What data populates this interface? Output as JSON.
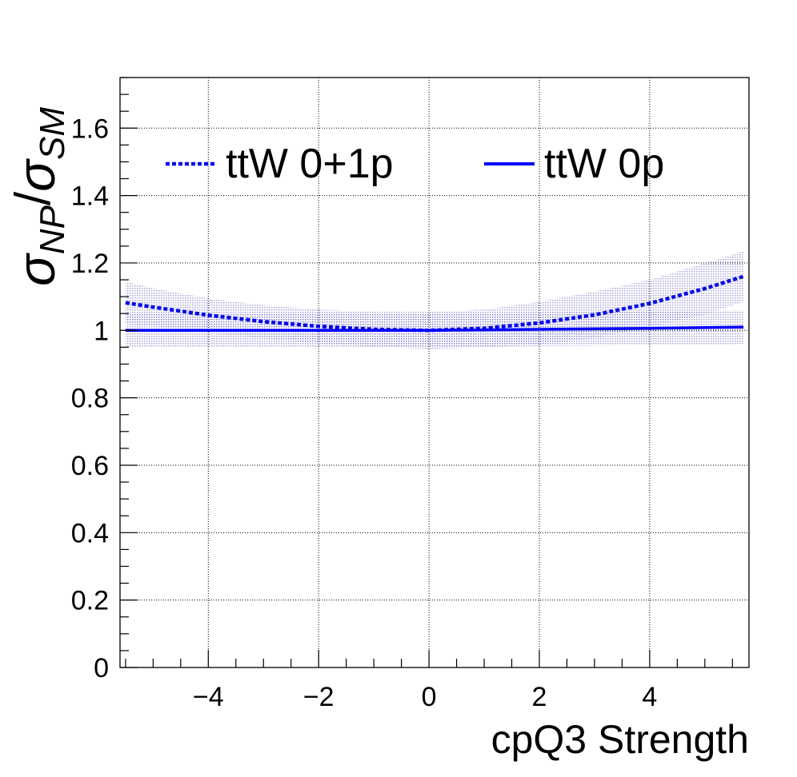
{
  "chart_data": {
    "type": "line",
    "xlabel": "cpQ3 Strength",
    "ylabel": {
      "num_symbol": "σ",
      "num_sub": "NP",
      "slash": "/",
      "den_symbol": "σ",
      "den_sub": "SM"
    },
    "xlim": [
      -5.6,
      5.8
    ],
    "ylim": [
      0,
      1.75
    ],
    "x_ticks": [
      -4,
      -2,
      0,
      2,
      4
    ],
    "x_tick_labels": [
      "−4",
      "−2",
      "0",
      "2",
      "4"
    ],
    "y_ticks": [
      0,
      0.2,
      0.4,
      0.6,
      0.8,
      1,
      1.2,
      1.4,
      1.6
    ],
    "y_tick_labels": [
      "0",
      "0.2",
      "0.4",
      "0.6",
      "0.8",
      "1",
      "1.2",
      "1.4",
      "1.6"
    ],
    "grid": true,
    "legend_position": "top",
    "series": [
      {
        "name": "ttW 0+1p",
        "style": "dotted",
        "color": "#0000ff",
        "x": [
          -5.5,
          -5,
          -4,
          -3,
          -2,
          -1,
          0,
          1,
          2,
          3,
          4,
          5,
          5.7
        ],
        "y": [
          1.082,
          1.069,
          1.045,
          1.026,
          1.012,
          1.003,
          1.0,
          1.006,
          1.022,
          1.046,
          1.08,
          1.124,
          1.16
        ],
        "band_upper": [
          1.145,
          1.125,
          1.095,
          1.075,
          1.062,
          1.055,
          1.055,
          1.062,
          1.085,
          1.115,
          1.15,
          1.2,
          1.235
        ],
        "band_lower": [
          1.02,
          1.013,
          0.995,
          0.977,
          0.962,
          0.951,
          0.945,
          0.95,
          0.959,
          0.977,
          1.01,
          1.048,
          1.085
        ]
      },
      {
        "name": "ttW 0p",
        "style": "solid",
        "color": "#0000ff",
        "x": [
          -5.5,
          -4,
          -2,
          0,
          2,
          4,
          5.7
        ],
        "y": [
          1.0,
          1.0,
          1.0,
          1.0,
          1.003,
          1.006,
          1.01
        ],
        "band_upper": [
          1.05,
          1.05,
          1.05,
          1.05,
          1.053,
          1.056,
          1.06
        ],
        "band_lower": [
          0.95,
          0.95,
          0.95,
          0.95,
          0.953,
          0.956,
          0.96
        ]
      }
    ]
  }
}
